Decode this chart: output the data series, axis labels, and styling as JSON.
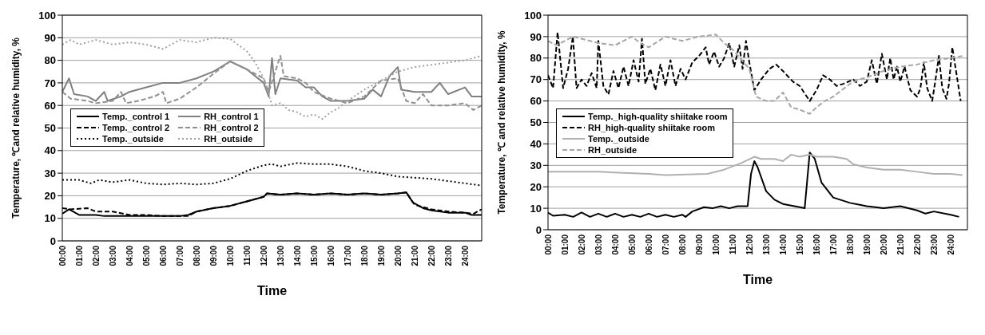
{
  "chart_data": [
    {
      "type": "line",
      "xlabel": "Time",
      "ylabel": "Temperature, ℃and relative humidity, %",
      "xlim": [
        0,
        25
      ],
      "xticks": [
        {
          "value": 0,
          "label": "00:00"
        },
        {
          "value": 1,
          "label": "01:00"
        },
        {
          "value": 2,
          "label": "02:00"
        },
        {
          "value": 3,
          "label": "03:00"
        },
        {
          "value": 4,
          "label": "04:00"
        },
        {
          "value": 5,
          "label": "05:00"
        },
        {
          "value": 6,
          "label": "06:00"
        },
        {
          "value": 7,
          "label": "07:00"
        },
        {
          "value": 8,
          "label": "08:00"
        },
        {
          "value": 9,
          "label": "09:00"
        },
        {
          "value": 10,
          "label": "10:00"
        },
        {
          "value": 11,
          "label": "11:00"
        },
        {
          "value": 12,
          "label": "12:00"
        },
        {
          "value": 13,
          "label": "13:00"
        },
        {
          "value": 14,
          "label": "14:00"
        },
        {
          "value": 15,
          "label": "15:00"
        },
        {
          "value": 16,
          "label": "16:00"
        },
        {
          "value": 17,
          "label": "17:00"
        },
        {
          "value": 18,
          "label": "18:00"
        },
        {
          "value": 19,
          "label": "19:00"
        },
        {
          "value": 20,
          "label": "20:00"
        },
        {
          "value": 21,
          "label": "21:00"
        },
        {
          "value": 22,
          "label": "22:00"
        },
        {
          "value": 23,
          "label": "23:00"
        },
        {
          "value": 24,
          "label": "24:00"
        }
      ],
      "ylim": [
        0,
        100
      ],
      "yticks": [
        0,
        10,
        20,
        30,
        40,
        50,
        60,
        70,
        80,
        90,
        100
      ],
      "grid": "y",
      "legend": "left",
      "series": [
        {
          "name": "Temp._control 1",
          "color": "#000000",
          "line_style": "solid",
          "x": [
            0,
            0.4,
            1,
            2,
            2.5,
            3,
            4,
            5,
            6,
            7,
            7.5,
            8,
            9,
            10,
            11,
            12,
            12.2,
            13,
            14,
            15,
            16,
            17,
            18,
            19,
            20,
            20.5,
            20.9,
            21.5,
            22,
            23,
            24,
            24.4,
            25
          ],
          "values": [
            12,
            14,
            11.5,
            11.5,
            11,
            11,
            11,
            11,
            11,
            11,
            11.5,
            13,
            14.5,
            15.5,
            17.5,
            19.5,
            21,
            20.5,
            21,
            20.5,
            21,
            20.5,
            21,
            20.5,
            21,
            21.5,
            17,
            14.5,
            13.5,
            12.5,
            12.5,
            11.5,
            11.5
          ]
        },
        {
          "name": "RH_control 1",
          "color": "#808080",
          "line_style": "solid",
          "x": [
            0,
            0.4,
            0.7,
            1.5,
            2,
            2.5,
            2.7,
            3.5,
            4,
            5,
            6,
            7,
            8,
            9,
            10,
            11,
            12,
            12.3,
            12.5,
            12.7,
            13,
            14,
            14.5,
            15,
            15.5,
            16,
            17,
            18,
            18.5,
            19,
            19.5,
            20,
            20.2,
            21,
            22,
            22.5,
            23,
            24,
            24.4,
            25
          ],
          "values": [
            66,
            72,
            65,
            64,
            62,
            66,
            62,
            64,
            66,
            68,
            70,
            70,
            72,
            75,
            79.5,
            76,
            70,
            64,
            81,
            65,
            72,
            71,
            68,
            68,
            64,
            62,
            62,
            63,
            67,
            64,
            73,
            77,
            67,
            66,
            66,
            70,
            65,
            68,
            64,
            64
          ]
        },
        {
          "name": "Temp._control 2",
          "color": "#000000",
          "line_style": "dashed",
          "x": [
            0,
            0.5,
            1.5,
            2,
            3,
            4,
            5,
            6,
            7,
            7.5,
            8,
            9,
            10,
            11,
            12,
            12.2,
            13,
            14,
            15,
            16,
            17,
            18,
            19,
            20,
            20.5,
            21,
            21.5,
            22,
            23,
            24,
            24.5,
            25
          ],
          "values": [
            14.5,
            14,
            14.5,
            13,
            13,
            11.5,
            11.5,
            11,
            11,
            11,
            13,
            14.5,
            15.5,
            17.5,
            19.5,
            21,
            20.5,
            21,
            20.5,
            21,
            20.5,
            21,
            20.5,
            21,
            21.5,
            16,
            15,
            14,
            13,
            12.5,
            12,
            14
          ]
        },
        {
          "name": "RH_control 2",
          "color": "#909090",
          "line_style": "dashed",
          "x": [
            0,
            0.5,
            1.5,
            2,
            3,
            3.5,
            3.8,
            4.5,
            5.5,
            6,
            6.2,
            7,
            8,
            9,
            10,
            11,
            12,
            12.3,
            13,
            13.2,
            14,
            14.5,
            15,
            16,
            17,
            18,
            19,
            20,
            20.5,
            21,
            21.5,
            22,
            23,
            24,
            24.5,
            25
          ],
          "values": [
            66,
            63,
            62,
            61,
            62,
            66,
            61,
            62,
            64,
            66,
            61,
            63,
            68,
            74,
            79.5,
            76,
            72,
            66,
            82,
            73,
            72,
            70,
            66,
            63,
            61,
            64,
            71,
            72,
            62,
            61,
            65,
            60,
            60,
            61,
            58,
            60
          ]
        },
        {
          "name": "Temp._outside",
          "color": "#000000",
          "line_style": "dotted",
          "x": [
            0,
            1,
            1.7,
            2.2,
            3,
            4,
            5,
            6,
            7,
            8,
            9,
            10,
            11,
            12,
            12.5,
            13,
            14,
            15,
            16,
            17,
            18,
            19,
            20,
            21,
            22,
            23,
            24,
            25
          ],
          "values": [
            27,
            27,
            25.5,
            27,
            26,
            27,
            25.5,
            25,
            25.5,
            25,
            25.5,
            27.5,
            31,
            33.5,
            34,
            33,
            34.5,
            34,
            34,
            33,
            31,
            30,
            28.5,
            28,
            27.5,
            26.5,
            25.5,
            24.5
          ]
        },
        {
          "name": "RH_outside",
          "color": "#a0a0a0",
          "line_style": "dotted",
          "x": [
            0,
            0.5,
            1,
            2,
            3,
            4,
            5,
            6,
            7,
            8,
            9,
            10,
            11,
            11.5,
            12,
            12.5,
            13,
            13.5,
            14,
            14.5,
            15,
            15.5,
            16,
            16.5,
            17,
            18,
            19,
            20,
            21,
            22,
            23,
            24,
            25
          ],
          "values": [
            87,
            89,
            87,
            89,
            87,
            88,
            87,
            85,
            89,
            88,
            90,
            89.5,
            84,
            79,
            72,
            60,
            61,
            58,
            57,
            55,
            56,
            54,
            57,
            59,
            62,
            67,
            71,
            75,
            77,
            78,
            79,
            80,
            82
          ]
        }
      ]
    },
    {
      "type": "line",
      "xlabel": "Time",
      "ylabel": "Temperature, ℃ and relative humidity, %",
      "xlim": [
        0,
        25
      ],
      "xticks": [
        {
          "value": 0,
          "label": "00:00"
        },
        {
          "value": 1,
          "label": "01:00"
        },
        {
          "value": 2,
          "label": "02:00"
        },
        {
          "value": 3,
          "label": "03:00"
        },
        {
          "value": 4,
          "label": "04:00"
        },
        {
          "value": 5,
          "label": "05:00"
        },
        {
          "value": 6,
          "label": "06:00"
        },
        {
          "value": 7,
          "label": "07:00"
        },
        {
          "value": 8,
          "label": "08:00"
        },
        {
          "value": 9,
          "label": "09:00"
        },
        {
          "value": 10,
          "label": "10:00"
        },
        {
          "value": 11,
          "label": "11:00"
        },
        {
          "value": 12,
          "label": "12:00"
        },
        {
          "value": 13,
          "label": "13:00"
        },
        {
          "value": 14,
          "label": "14:00"
        },
        {
          "value": 15,
          "label": "15:00"
        },
        {
          "value": 16,
          "label": "16:00"
        },
        {
          "value": 17,
          "label": "17:00"
        },
        {
          "value": 18,
          "label": "18:00"
        },
        {
          "value": 19,
          "label": "19:00"
        },
        {
          "value": 20,
          "label": "20:00"
        },
        {
          "value": 21,
          "label": "21:00"
        },
        {
          "value": 22,
          "label": "22:00"
        },
        {
          "value": 23,
          "label": "23:00"
        },
        {
          "value": 24,
          "label": "24:00"
        }
      ],
      "ylim": [
        0,
        100
      ],
      "yticks": [
        0,
        10,
        20,
        30,
        40,
        50,
        60,
        70,
        80,
        90,
        100
      ],
      "grid": "y",
      "legend": "left",
      "series": [
        {
          "name": "Temp._high-quality shiitake room",
          "color": "#000000",
          "line_style": "solid",
          "x": [
            0,
            0.3,
            1,
            1.5,
            2,
            2.5,
            3,
            3.5,
            4,
            4.5,
            5,
            5.5,
            6,
            6.5,
            7,
            7.5,
            8,
            8.2,
            8.6,
            9.3,
            9.8,
            10.3,
            10.8,
            11.3,
            11.9,
            12.1,
            12.3,
            12.5,
            13,
            13.5,
            14,
            15,
            15.3,
            15.6,
            15.9,
            16.3,
            17,
            18,
            19,
            20,
            21,
            22,
            22.5,
            23,
            24,
            24.5
          ],
          "values": [
            8,
            6.5,
            7,
            6,
            8,
            6,
            7.5,
            6,
            7.5,
            6,
            7,
            6,
            7.5,
            6,
            7,
            6,
            7,
            6,
            8.5,
            10.5,
            10,
            11,
            10,
            11,
            11,
            26,
            32,
            29,
            18,
            14,
            12,
            10.5,
            10,
            36,
            33,
            22,
            15,
            12.5,
            11,
            10,
            11,
            9,
            7.5,
            8.5,
            7,
            6
          ]
        },
        {
          "name": "RH_high-quality shiitake room",
          "color": "#000000",
          "line_style": "dashed",
          "x": [
            0,
            0.3,
            0.57,
            0.9,
            1.2,
            1.48,
            1.7,
            2,
            2.3,
            2.6,
            2.9,
            3.0,
            3.3,
            3.6,
            3.9,
            4.2,
            4.5,
            4.8,
            5.1,
            5.4,
            5.6,
            5.8,
            6.1,
            6.4,
            6.7,
            7,
            7.3,
            7.6,
            7.9,
            8.2,
            8.6,
            9,
            9.4,
            9.6,
            9.9,
            10.2,
            10.5,
            10.8,
            11.1,
            11.4,
            11.6,
            11.8,
            12.0,
            12.3,
            12.7,
            13.2,
            13.6,
            14,
            14.6,
            15,
            15.6,
            16,
            16.4,
            16.8,
            17.2,
            17.6,
            18.2,
            18.6,
            19,
            19.3,
            19.6,
            19.9,
            20.2,
            20.4,
            20.6,
            20.8,
            21,
            21.25,
            21.6,
            22,
            22.2,
            22.4,
            22.6,
            22.9,
            23.1,
            23.3,
            23.5,
            23.75,
            23.9,
            24.1,
            24.4,
            24.6
          ],
          "values": [
            72,
            66,
            92,
            66,
            75,
            90,
            66,
            70,
            67,
            73,
            66,
            88,
            67,
            63,
            74,
            66,
            76,
            67,
            79,
            69,
            89,
            68,
            75,
            65,
            77,
            67,
            79,
            67,
            75,
            70,
            78,
            81,
            85,
            77,
            83,
            76,
            80,
            87,
            76,
            86,
            75,
            88,
            78,
            65,
            70,
            75,
            77,
            74,
            69,
            67,
            60,
            65,
            72,
            70,
            67,
            68,
            70,
            67,
            69,
            79,
            68,
            82,
            70,
            80,
            70,
            76,
            69,
            76,
            65,
            62,
            66,
            78,
            66,
            60,
            70,
            81,
            66,
            61,
            68,
            85,
            70,
            60
          ]
        },
        {
          "name": "Temp._outside",
          "color": "#b0b0b0",
          "line_style": "solid",
          "x": [
            0,
            3,
            6,
            7,
            9.5,
            10.5,
            11.5,
            12.3,
            12.7,
            13.5,
            14,
            14.5,
            15,
            15.6,
            16,
            17,
            17.8,
            18.2,
            19,
            20,
            21,
            22,
            23,
            24,
            24.7
          ],
          "values": [
            27,
            27,
            26,
            25.5,
            26,
            28,
            31,
            34,
            33,
            33,
            32,
            35,
            34,
            35,
            34,
            34,
            33,
            30.5,
            29,
            28,
            28,
            27,
            26,
            26,
            25.5
          ]
        },
        {
          "name": "RH_outside",
          "color": "#a6a6a6",
          "line_style": "dashed",
          "x": [
            0,
            0.5,
            1.5,
            2,
            3,
            4,
            5,
            5.5,
            6,
            7,
            8,
            9,
            10,
            10.5,
            11,
            12,
            12.4,
            13,
            13.5,
            14,
            14.5,
            15,
            15.6,
            16,
            16.5,
            17,
            17.5,
            18,
            18.5,
            19,
            20,
            21,
            22,
            23,
            24,
            24.7
          ],
          "values": [
            88,
            86,
            90,
            89,
            87,
            86,
            90,
            87,
            85,
            90,
            88,
            90,
            91,
            87,
            84,
            75,
            62,
            60,
            60,
            64,
            57,
            56,
            54,
            57,
            60,
            62,
            65,
            68,
            70,
            71,
            74,
            76,
            77,
            79,
            80,
            81
          ]
        }
      ]
    }
  ]
}
